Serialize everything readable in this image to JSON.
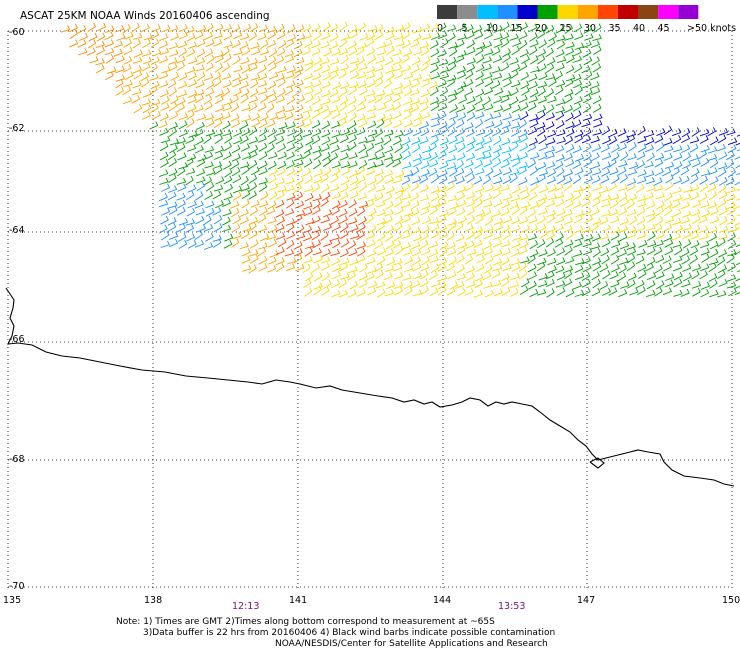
{
  "title": "ASCAT 25KM NOAA Winds 20160406 ascending",
  "legend": {
    "unit_label": ">50 knots",
    "ticks": [
      "0",
      "5",
      "10",
      "15",
      "20",
      "25",
      "30",
      "35",
      "40",
      "45"
    ],
    "colors": [
      "#3c3c3c",
      "#8c8c8c",
      "#00bfff",
      "#1e90ff",
      "#0000cd",
      "#00a000",
      "#ffd700",
      "#ffa500",
      "#ff4500",
      "#c00000",
      "#8b4513",
      "#ff00ff",
      "#9400d3"
    ]
  },
  "axes": {
    "lat_labels": [
      "-60",
      "-62",
      "-64",
      "-66",
      "-68",
      "-70"
    ],
    "lon_labels": [
      "135",
      "138",
      "141",
      "144",
      "147",
      "150"
    ]
  },
  "times": [
    "12:13",
    "13:53"
  ],
  "notes": [
    "Note: 1) Times are GMT 2)Times along bottom correspond to measurement at ~65S",
    "3)Data buffer is 22 hrs from 20160406 4) Black wind barbs indicate possible contamination",
    "NOAA/NESDIS/Center for Satellite Applications and Research"
  ],
  "wind_field": {
    "swath": "ascending",
    "speed_range_knots": [
      0,
      50
    ],
    "regions": [
      {
        "area": "north-west",
        "speed_class": "25-30 knots",
        "color": "#ffa500"
      },
      {
        "area": "north-east",
        "speed_class": "10-20 knots",
        "color": "#1e90ff"
      },
      {
        "area": "central",
        "speed_class": "20-25 knots",
        "color": "#ffd700"
      },
      {
        "area": "south-center",
        "speed_class": "30-35 knots",
        "color": "#ff4500"
      }
    ]
  }
}
